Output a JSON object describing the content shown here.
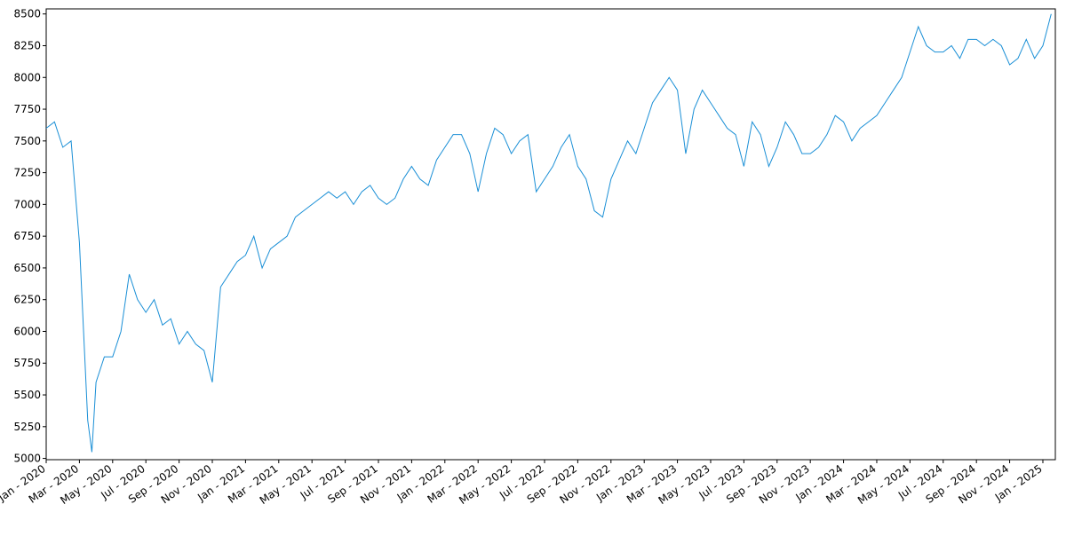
{
  "chart_data": {
    "type": "line",
    "color": "#1a8fd6",
    "x": [
      0,
      0.5,
      1,
      1.5,
      2,
      2.25,
      2.5,
      2.75,
      3,
      3.5,
      4,
      4.5,
      5,
      5.5,
      6,
      6.5,
      7,
      7.5,
      8,
      8.5,
      9,
      9.5,
      10,
      10.5,
      11,
      11.5,
      12,
      12.5,
      13,
      13.5,
      14,
      14.5,
      15,
      15.5,
      16,
      16.5,
      17,
      17.5,
      18,
      18.5,
      19,
      19.5,
      20,
      20.5,
      21,
      21.5,
      22,
      22.5,
      23,
      23.5,
      24,
      24.5,
      25,
      25.5,
      26,
      26.5,
      27,
      27.5,
      28,
      28.5,
      29,
      29.5,
      30,
      30.5,
      31,
      31.5,
      32,
      32.5,
      33,
      33.5,
      34,
      34.5,
      35,
      35.5,
      36,
      36.5,
      37,
      37.5,
      38,
      38.5,
      39,
      39.5,
      40,
      40.5,
      41,
      41.5,
      42,
      42.5,
      43,
      43.5,
      44,
      44.5,
      45,
      45.5,
      46,
      46.5,
      47,
      47.5,
      48,
      48.5,
      49,
      49.5,
      50,
      50.5,
      51,
      51.5,
      52,
      52.5,
      53,
      53.5,
      54,
      54.5,
      55,
      55.5,
      56,
      56.5,
      57,
      57.5,
      58,
      58.5,
      59,
      59.5,
      60,
      60.5
    ],
    "values": [
      7600,
      7650,
      7450,
      7500,
      6700,
      6000,
      5300,
      5050,
      5600,
      5800,
      5800,
      6000,
      6450,
      6250,
      6150,
      6250,
      6050,
      6100,
      5900,
      6000,
      5900,
      5850,
      5600,
      6350,
      6450,
      6550,
      6600,
      6750,
      6500,
      6650,
      6700,
      6750,
      6900,
      6950,
      7000,
      7050,
      7100,
      7050,
      7100,
      7000,
      7100,
      7150,
      7050,
      7000,
      7050,
      7200,
      7300,
      7200,
      7150,
      7350,
      7450,
      7550,
      7550,
      7400,
      7100,
      7400,
      7600,
      7550,
      7400,
      7500,
      7550,
      7100,
      7200,
      7300,
      7450,
      7550,
      7300,
      7200,
      6950,
      6900,
      7200,
      7350,
      7500,
      7400,
      7600,
      7800,
      7900,
      8000,
      7900,
      7400,
      7750,
      7900,
      7800,
      7700,
      7600,
      7550,
      7300,
      7650,
      7550,
      7300,
      7450,
      7650,
      7550,
      7400,
      7400,
      7450,
      7550,
      7700,
      7650,
      7500,
      7600,
      7650,
      7700,
      7800,
      7900,
      8000,
      8200,
      8400,
      8250,
      8200,
      8200,
      8250,
      8150,
      8300,
      8300,
      8250,
      8300,
      8250,
      8100,
      8150,
      8300,
      8150,
      8250,
      8500
    ],
    "xlim": [
      0,
      60.75
    ],
    "ylim": [
      4990,
      8540
    ],
    "yticks": [
      5000,
      5250,
      5500,
      5750,
      6000,
      6250,
      6500,
      6750,
      7000,
      7250,
      7500,
      7750,
      8000,
      8250,
      8500
    ],
    "xticks": [
      {
        "value": 0,
        "label": "Jan - 2020"
      },
      {
        "value": 2,
        "label": "Mar - 2020"
      },
      {
        "value": 4,
        "label": "May - 2020"
      },
      {
        "value": 6,
        "label": "Jul - 2020"
      },
      {
        "value": 8,
        "label": "Sep - 2020"
      },
      {
        "value": 10,
        "label": "Nov - 2020"
      },
      {
        "value": 12,
        "label": "Jan - 2021"
      },
      {
        "value": 14,
        "label": "Mar - 2021"
      },
      {
        "value": 16,
        "label": "May - 2021"
      },
      {
        "value": 18,
        "label": "Jul - 2021"
      },
      {
        "value": 20,
        "label": "Sep - 2021"
      },
      {
        "value": 22,
        "label": "Nov - 2021"
      },
      {
        "value": 24,
        "label": "Jan - 2022"
      },
      {
        "value": 26,
        "label": "Mar - 2022"
      },
      {
        "value": 28,
        "label": "May - 2022"
      },
      {
        "value": 30,
        "label": "Jul - 2022"
      },
      {
        "value": 32,
        "label": "Sep - 2022"
      },
      {
        "value": 34,
        "label": "Nov - 2022"
      },
      {
        "value": 36,
        "label": "Jan - 2023"
      },
      {
        "value": 38,
        "label": "Mar - 2023"
      },
      {
        "value": 40,
        "label": "May - 2023"
      },
      {
        "value": 42,
        "label": "Jul - 2023"
      },
      {
        "value": 44,
        "label": "Sep - 2023"
      },
      {
        "value": 46,
        "label": "Nov - 2023"
      },
      {
        "value": 48,
        "label": "Jan - 2024"
      },
      {
        "value": 50,
        "label": "Mar - 2024"
      },
      {
        "value": 52,
        "label": "May - 2024"
      },
      {
        "value": 54,
        "label": "Jul - 2024"
      },
      {
        "value": 56,
        "label": "Sep - 2024"
      },
      {
        "value": 58,
        "label": "Nov - 2024"
      },
      {
        "value": 60,
        "label": "Jan - 2025"
      }
    ]
  }
}
